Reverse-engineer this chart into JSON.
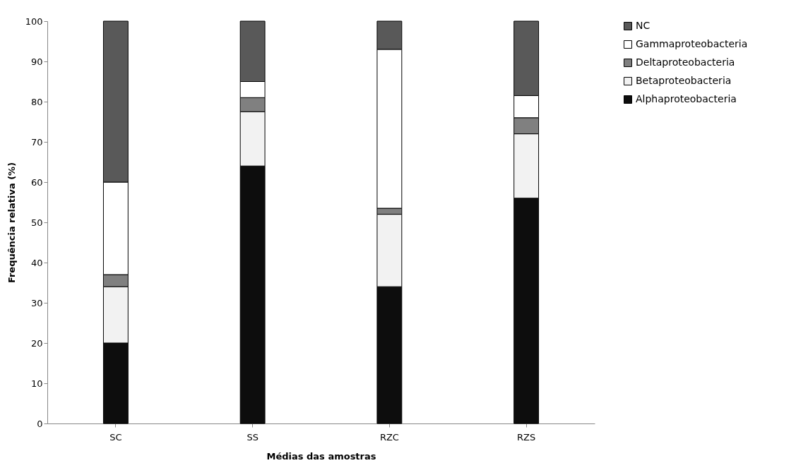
{
  "chart_data": {
    "type": "bar",
    "stacked": true,
    "xlabel": "Médias das amostras",
    "ylabel": "Frequência relativa (%)",
    "categories": [
      "SC",
      "SS",
      "RZC",
      "RZS"
    ],
    "series": [
      {
        "name": "Alphaproteobacteria",
        "color": "#0d0d0d",
        "values": [
          20,
          64,
          34,
          56
        ]
      },
      {
        "name": "Betaproteobacteria",
        "color": "#f2f2f2",
        "values": [
          14,
          13.5,
          18,
          16
        ]
      },
      {
        "name": "Deltaproteobacteria",
        "color": "#808080",
        "values": [
          3,
          3.5,
          1.5,
          4
        ]
      },
      {
        "name": "Gammaproteobacteria",
        "color": "#ffffff",
        "values": [
          23,
          4,
          39.5,
          5.5
        ]
      },
      {
        "name": "NC",
        "color": "#595959",
        "values": [
          40,
          15,
          7,
          18.5
        ]
      }
    ],
    "ylim": [
      0,
      100
    ],
    "yticks": [
      0,
      10,
      20,
      30,
      40,
      50,
      60,
      70,
      80,
      90,
      100
    ],
    "grid": false,
    "legend": "right"
  }
}
